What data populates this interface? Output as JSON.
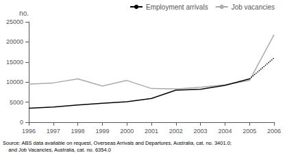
{
  "chart_data": {
    "type": "line",
    "x": [
      1996,
      1997,
      1998,
      1999,
      2000,
      2001,
      2002,
      2003,
      2004,
      2005,
      2006
    ],
    "xlim": [
      1996,
      2006
    ],
    "xticks": [
      1996,
      1997,
      1998,
      1999,
      2000,
      2001,
      2002,
      2003,
      2004,
      2005,
      2006
    ],
    "ylim": [
      0,
      25000
    ],
    "yticks": [
      0,
      5000,
      10000,
      15000,
      20000,
      25000
    ],
    "ylabel": "no.",
    "series": [
      {
        "name": "Employment arrivals",
        "color": "#000000",
        "line_style": "solid",
        "values": [
          3500,
          3800,
          4300,
          4700,
          5100,
          5900,
          8000,
          8200,
          9200,
          10800,
          16000
        ]
      },
      {
        "name": "Job vacancies",
        "color": "#aaaaaa",
        "line_style": "solid",
        "values": [
          9500,
          9800,
          10800,
          9000,
          10400,
          8400,
          8300,
          8700,
          9300,
          10400,
          21800
        ]
      }
    ],
    "legend": "upper right",
    "grid": false,
    "annotations": [
      "Source: ABS data available on request, Overseas Arrivals and Departures, Australia, cat. no. 3401.0;",
      "    and Job Vacancies, Australia, cat. no. 6354.0"
    ]
  }
}
